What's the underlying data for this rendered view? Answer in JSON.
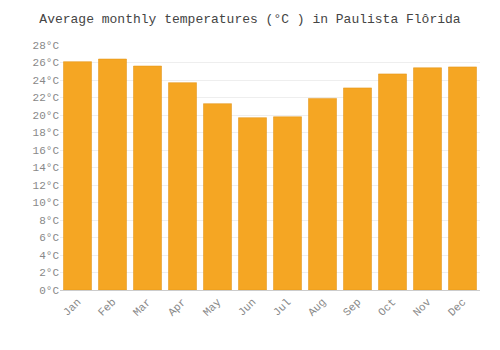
{
  "chart_data": {
    "type": "bar",
    "title": "Average monthly temperatures (°C ) in Paulista Flôrida",
    "categories": [
      "Jan",
      "Feb",
      "Mar",
      "Apr",
      "May",
      "Jun",
      "Jul",
      "Aug",
      "Sep",
      "Oct",
      "Nov",
      "Dec"
    ],
    "values": [
      26.1,
      26.4,
      25.6,
      23.7,
      21.3,
      19.7,
      19.8,
      21.9,
      23.1,
      24.7,
      25.4,
      25.5
    ],
    "color": "#F5A623",
    "ylim": [
      0,
      28
    ],
    "yticks": [
      {
        "value": 0,
        "label": "0°C"
      },
      {
        "value": 2,
        "label": "2°C"
      },
      {
        "value": 4,
        "label": "4°C"
      },
      {
        "value": 6,
        "label": "6°C"
      },
      {
        "value": 8,
        "label": "8°C"
      },
      {
        "value": 10,
        "label": "10°C"
      },
      {
        "value": 12,
        "label": "12°C"
      },
      {
        "value": 14,
        "label": "14°C"
      },
      {
        "value": 16,
        "label": "16°C"
      },
      {
        "value": 18,
        "label": "18°C"
      },
      {
        "value": 20,
        "label": "20°C"
      },
      {
        "value": 22,
        "label": "22°C"
      },
      {
        "value": 24,
        "label": "24°C"
      },
      {
        "value": 26,
        "label": "26°C"
      },
      {
        "value": 28,
        "label": "28°C"
      }
    ],
    "grid": true
  }
}
